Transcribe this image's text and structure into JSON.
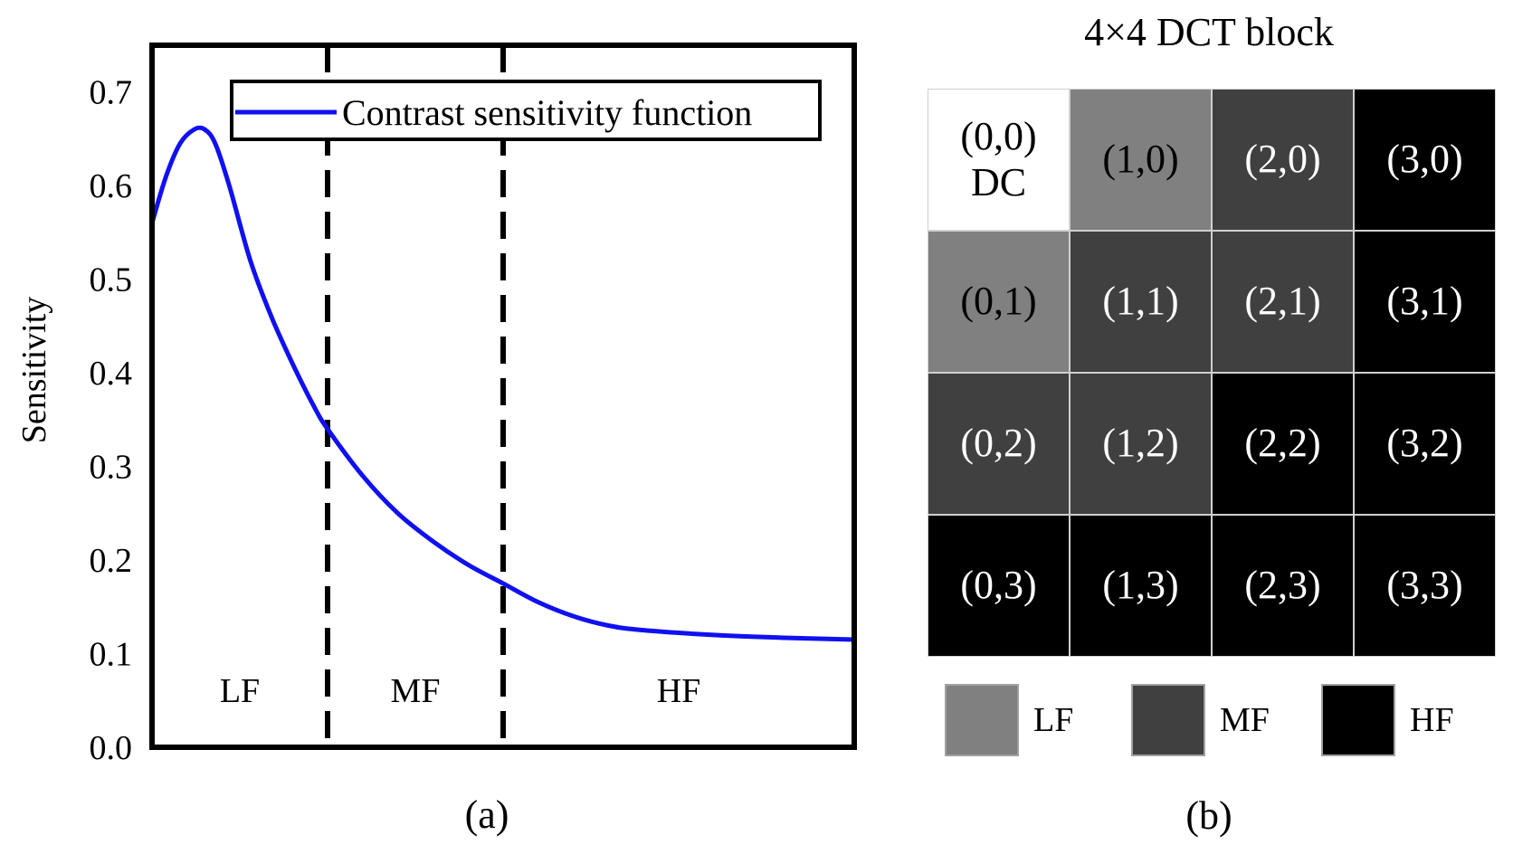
{
  "panel_a": {
    "caption": "(a)",
    "legend_label": "Contrast sensitivity function",
    "ylabel": "Sensitivity",
    "region_labels": [
      "LF",
      "MF",
      "HF"
    ],
    "colors": {
      "curve": "#1010f0",
      "axes": "#000000"
    },
    "chart_data": {
      "type": "line",
      "title": "",
      "xlabel": "",
      "ylabel": "Sensitivity",
      "ylim": [
        0.0,
        0.75
      ],
      "yticks": [
        "0.0",
        "0.1",
        "0.2",
        "0.3",
        "0.4",
        "0.5",
        "0.6",
        "0.7"
      ],
      "xlim": [
        0,
        1
      ],
      "grid": false,
      "legend_placement": "top-right",
      "dividers_x": [
        0.25,
        0.5
      ],
      "series": [
        {
          "name": "Contrast sensitivity function",
          "x": [
            0.0,
            0.02,
            0.04,
            0.06,
            0.075,
            0.09,
            0.11,
            0.14,
            0.17,
            0.2,
            0.23,
            0.25,
            0.3,
            0.35,
            0.4,
            0.45,
            0.5,
            0.55,
            0.6,
            0.65,
            0.7,
            0.8,
            0.9,
            1.0
          ],
          "values": [
            0.56,
            0.61,
            0.645,
            0.66,
            0.66,
            0.645,
            0.6,
            0.52,
            0.46,
            0.41,
            0.365,
            0.34,
            0.29,
            0.25,
            0.22,
            0.195,
            0.175,
            0.155,
            0.14,
            0.13,
            0.125,
            0.12,
            0.117,
            0.115
          ]
        }
      ]
    }
  },
  "panel_b": {
    "title": "4×4 DCT block",
    "caption": "(b)",
    "colors": {
      "dc": "#ffffff",
      "lf": "#808080",
      "mf": "#404040",
      "hf": "#000000"
    },
    "grid": [
      [
        {
          "lines": [
            "(0,0)",
            "DC"
          ],
          "band": "dc"
        },
        {
          "lines": [
            "(1,0)"
          ],
          "band": "lf"
        },
        {
          "lines": [
            "(2,0)"
          ],
          "band": "mf"
        },
        {
          "lines": [
            "(3,0)"
          ],
          "band": "hf"
        }
      ],
      [
        {
          "lines": [
            "(0,1)"
          ],
          "band": "lf"
        },
        {
          "lines": [
            "(1,1)"
          ],
          "band": "mf"
        },
        {
          "lines": [
            "(2,1)"
          ],
          "band": "mf"
        },
        {
          "lines": [
            "(3,1)"
          ],
          "band": "hf"
        }
      ],
      [
        {
          "lines": [
            "(0,2)"
          ],
          "band": "mf"
        },
        {
          "lines": [
            "(1,2)"
          ],
          "band": "mf"
        },
        {
          "lines": [
            "(2,2)"
          ],
          "band": "hf"
        },
        {
          "lines": [
            "(3,2)"
          ],
          "band": "hf"
        }
      ],
      [
        {
          "lines": [
            "(0,3)"
          ],
          "band": "hf"
        },
        {
          "lines": [
            "(1,3)"
          ],
          "band": "hf"
        },
        {
          "lines": [
            "(2,3)"
          ],
          "band": "hf"
        },
        {
          "lines": [
            "(3,3)"
          ],
          "band": "hf"
        }
      ]
    ],
    "legend": [
      {
        "label": "LF",
        "band": "lf"
      },
      {
        "label": "MF",
        "band": "mf"
      },
      {
        "label": "HF",
        "band": "hf"
      }
    ]
  }
}
